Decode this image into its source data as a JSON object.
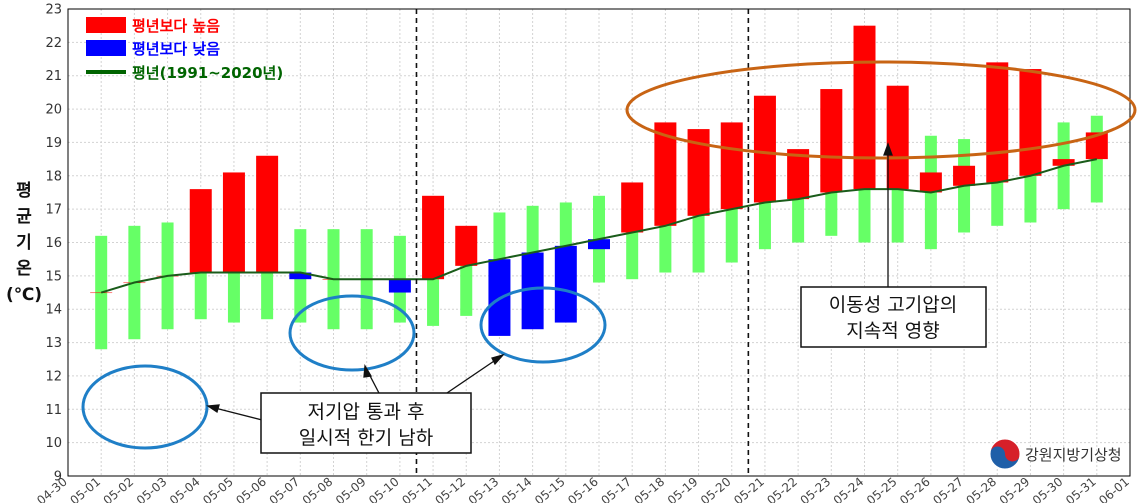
{
  "chart_data": {
    "type": "bar",
    "ylabel": [
      "평",
      "균",
      "기",
      "온",
      "(℃)"
    ],
    "ylim": [
      9,
      23
    ],
    "yticks": [
      9,
      10,
      11,
      12,
      13,
      14,
      15,
      16,
      17,
      18,
      19,
      20,
      21,
      22,
      23
    ],
    "categories": [
      "04-30",
      "05-01",
      "05-02",
      "05-03",
      "05-04",
      "05-05",
      "05-06",
      "05-07",
      "05-08",
      "05-09",
      "05-10",
      "05-11",
      "05-12",
      "05-13",
      "05-14",
      "05-15",
      "05-16",
      "05-17",
      "05-18",
      "05-19",
      "05-20",
      "05-21",
      "05-22",
      "05-23",
      "05-24",
      "05-25",
      "05-26",
      "05-27",
      "05-28",
      "05-29",
      "05-30",
      "05-31",
      "06-01"
    ],
    "observed": [
      null,
      14.5,
      14.8,
      15.0,
      17.6,
      18.1,
      18.6,
      14.9,
      14.9,
      14.9,
      14.5,
      17.4,
      16.5,
      13.2,
      13.4,
      13.6,
      15.8,
      17.8,
      19.6,
      19.4,
      19.6,
      20.4,
      18.8,
      20.6,
      22.5,
      20.7,
      18.1,
      18.3,
      21.4,
      21.2,
      18.5,
      19.3,
      null
    ],
    "normal": [
      null,
      14.5,
      14.8,
      15.0,
      15.1,
      15.1,
      15.1,
      15.1,
      14.9,
      14.9,
      14.9,
      14.9,
      15.3,
      15.5,
      15.7,
      15.9,
      16.1,
      16.3,
      16.5,
      16.8,
      17.0,
      17.2,
      17.3,
      17.5,
      17.6,
      17.6,
      17.5,
      17.7,
      17.8,
      18.0,
      18.3,
      18.5,
      null
    ],
    "normal_range": [
      null,
      [
        12.8,
        16.2
      ],
      [
        13.1,
        16.5
      ],
      [
        13.4,
        16.6
      ],
      [
        13.7,
        16.5
      ],
      [
        13.6,
        16.6
      ],
      [
        13.7,
        16.5
      ],
      [
        13.6,
        16.4
      ],
      [
        13.4,
        16.4
      ],
      [
        13.4,
        16.4
      ],
      [
        13.6,
        16.2
      ],
      [
        13.5,
        16.3
      ],
      [
        13.8,
        16.4
      ],
      [
        13.9,
        16.9
      ],
      [
        14.3,
        17.1
      ],
      [
        14.6,
        17.2
      ],
      [
        14.8,
        17.4
      ],
      [
        14.9,
        17.7
      ],
      [
        15.1,
        17.9
      ],
      [
        15.1,
        18.3
      ],
      [
        15.4,
        18.4
      ],
      [
        15.8,
        18.6
      ],
      [
        16.0,
        18.6
      ],
      [
        16.2,
        18.8
      ],
      [
        16.0,
        19.2
      ],
      [
        16.0,
        19.2
      ],
      [
        15.8,
        19.2
      ],
      [
        16.3,
        19.1
      ],
      [
        16.5,
        19.1
      ],
      [
        16.6,
        19.4
      ],
      [
        17.0,
        19.6
      ],
      [
        17.2,
        19.8
      ],
      [
        null,
        null
      ]
    ],
    "legend": [
      {
        "label": "평년보다 높음",
        "color": "#ff0000",
        "kind": "bar"
      },
      {
        "label": "평년보다 낮음",
        "color": "#0000ff",
        "kind": "bar"
      },
      {
        "label": "평년(1991~2020년)",
        "color": "#006400",
        "kind": "line"
      }
    ],
    "colors": {
      "above": "#ff0000",
      "below": "#0000ff",
      "normal_range": "#66ff66",
      "normal_line": "#1a5c1a",
      "ellipse_blue": "#1f7fc7",
      "ellipse_orange": "#c86414"
    },
    "divider_dates": [
      "05-11",
      "05-21"
    ],
    "annotations": {
      "low_pressure": [
        "저기압 통과 후",
        "일시적 한기 남하"
      ],
      "high_pressure": [
        "이동성 고기압의",
        "지속적 영향"
      ]
    },
    "legend_placement": "top-left"
  },
  "logo": {
    "text": "강원지방기상청",
    "icon": "kma-taegeuk-logo"
  }
}
